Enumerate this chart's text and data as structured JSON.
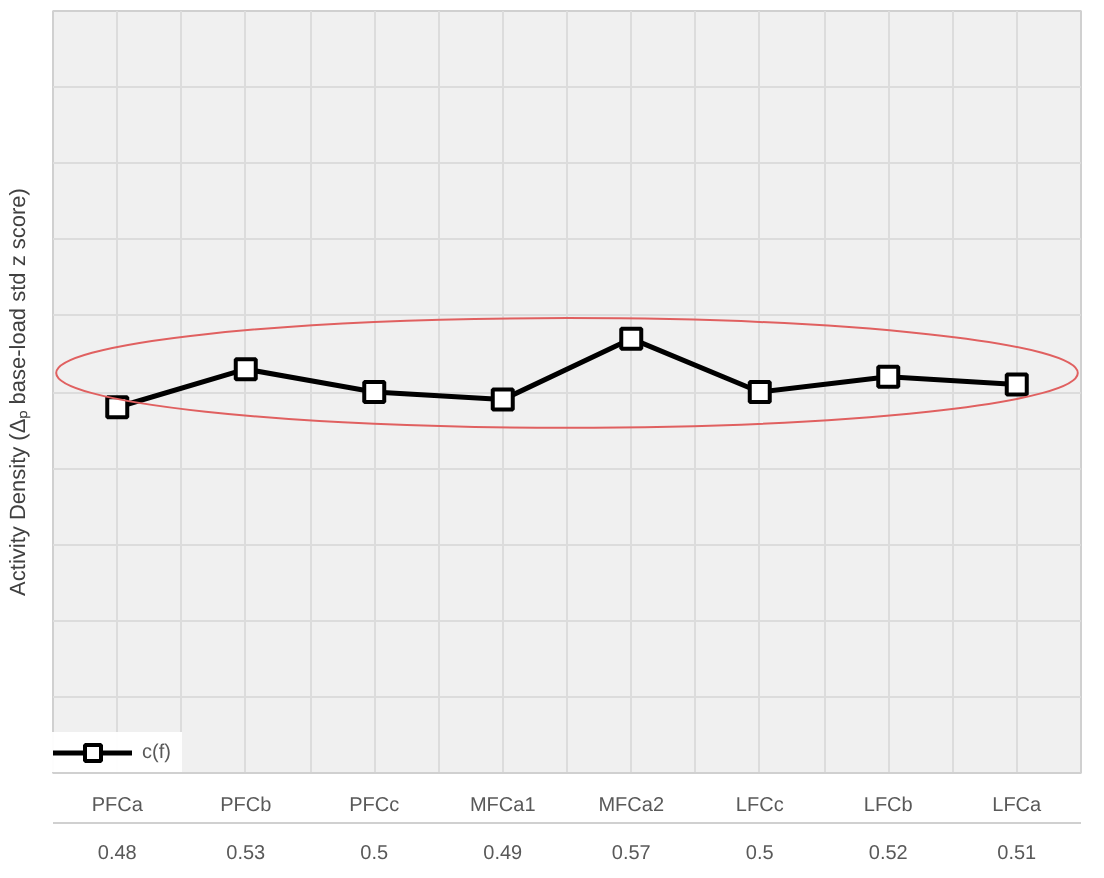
{
  "chart_data": {
    "type": "line",
    "ylabel": "Activity Density (Δₚ base-load std z score)",
    "categories": [
      "PFCa",
      "PFCb",
      "PFCc",
      "MFCa1",
      "MFCa2",
      "LFCc",
      "LFCb",
      "LFCa"
    ],
    "series": [
      {
        "name": "c(f)",
        "color": "#000000",
        "values": [
          0.48,
          0.53,
          0.5,
          0.49,
          0.57,
          0.5,
          0.52,
          0.51
        ]
      }
    ],
    "ylim": [
      0,
      1
    ],
    "yticks": [
      {
        "value": 0,
        "label": null
      },
      {
        "value": 0.1,
        "label": null
      },
      {
        "value": 0.2,
        "label": null
      },
      {
        "value": 0.3,
        "label": null
      },
      {
        "value": 0.4,
        "label": null
      },
      {
        "value": 0.5,
        "label": null
      },
      {
        "value": 0.6,
        "label": null
      },
      {
        "value": 0.7,
        "label": null
      },
      {
        "value": 0.8,
        "label": null
      },
      {
        "value": 0.9,
        "label": null
      },
      {
        "value": 1,
        "label": null
      }
    ],
    "tick_labels": "x",
    "grid": true,
    "marker": "square",
    "line_style": "solid",
    "data_labels": true,
    "legend": "bottom left"
  }
}
